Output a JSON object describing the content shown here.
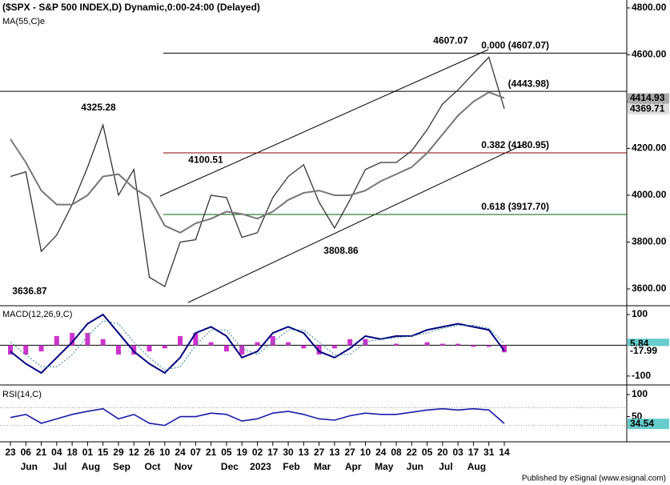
{
  "chart_data": [
    {
      "type": "price",
      "title": "($SPX - S&P 500 INDEX,D) Dynamic,0:00-24:00 (Delayed)",
      "subtitle": "MA(55,C)e",
      "categories": [
        "23",
        "06",
        "21",
        "04",
        "18",
        "01",
        "15",
        "29",
        "12",
        "26",
        "10",
        "24",
        "07",
        "21",
        "05",
        "19",
        "02",
        "17",
        "30",
        "13",
        "27",
        "13",
        "27",
        "10",
        "24",
        "08",
        "22",
        "05",
        "20",
        "03",
        "17",
        "31",
        "14"
      ],
      "months": [
        null,
        "Jun",
        null,
        "Jul",
        null,
        "Aug",
        null,
        "Sep",
        null,
        "Oct",
        null,
        "Nov",
        null,
        null,
        "Dec",
        null,
        "2023",
        null,
        "Feb",
        null,
        "Mar",
        null,
        "Apr",
        null,
        "May",
        null,
        "Jun",
        null,
        "Jul",
        null,
        "Aug",
        null,
        null
      ],
      "series": [
        {
          "color": "#333333",
          "values": [
            4080,
            4100,
            3760,
            3830,
            3960,
            4120,
            4300,
            4000,
            4110,
            3650,
            3610,
            3800,
            3810,
            4000,
            3990,
            3820,
            3840,
            3990,
            4080,
            4130,
            3970,
            3860,
            3980,
            4110,
            4140,
            4140,
            4190,
            4280,
            4390,
            4450,
            4520,
            4590,
            4369.71
          ]
        },
        {
          "color": "#777777",
          "values": [
            4240,
            4140,
            4020,
            3960,
            3960,
            4000,
            4080,
            4090,
            4030,
            3990,
            3870,
            3840,
            3880,
            3900,
            3930,
            3920,
            3900,
            3930,
            3980,
            4010,
            4020,
            4000,
            4000,
            4020,
            4060,
            4090,
            4120,
            4180,
            4260,
            4340,
            4400,
            4440,
            4414.93
          ]
        }
      ],
      "ylim": [
        3528,
        4834
      ],
      "yticks": [
        {
          "value": 3600,
          "label": "3600.00"
        },
        {
          "value": 3800,
          "label": "3800.00"
        },
        {
          "value": 4000,
          "label": "4000.00"
        },
        {
          "value": 4200,
          "label": "4200.00"
        },
        {
          "value": 4400,
          "label": "4400.00"
        },
        {
          "value": 4600,
          "label": "4600.00"
        },
        {
          "value": 4800,
          "label": "4800.00"
        }
      ],
      "levels": [
        {
          "label": "0.000 (4607.07)",
          "value": 4607.07,
          "color": "#000000"
        },
        {
          "label": "(4443.98)",
          "value": 4443.98,
          "color": "#000000"
        },
        {
          "label": "0.382 (4180.95)",
          "value": 4180.95,
          "color": "#8b0000"
        },
        {
          "label": "0.618 (3917.70)",
          "value": 3917.7,
          "color": "#006400"
        }
      ],
      "annotations": [
        {
          "label": "4607.07",
          "value": 4607.07
        },
        {
          "label": "4325.28",
          "value": 4325.28
        },
        {
          "label": "4100.51",
          "value": 4100.51
        },
        {
          "label": "3808.86",
          "value": 3808.86
        },
        {
          "label": "3636.87",
          "value": 3636.87
        }
      ]
    },
    {
      "type": "macd",
      "title": "MACD(12,26,9,C)",
      "series": [
        {
          "color": "#000080",
          "values": [
            -20,
            -60,
            -90,
            -40,
            10,
            70,
            100,
            40,
            -20,
            -60,
            -90,
            -40,
            40,
            60,
            30,
            -40,
            -20,
            40,
            60,
            40,
            -20,
            -40,
            -10,
            30,
            20,
            30,
            30,
            50,
            60,
            70,
            60,
            50,
            -17.99
          ]
        },
        {
          "color": "#2e8b8b",
          "values": [
            10,
            -30,
            -70,
            -70,
            -30,
            30,
            80,
            70,
            10,
            -40,
            -80,
            -70,
            0,
            50,
            50,
            -10,
            -30,
            10,
            50,
            50,
            10,
            -30,
            -30,
            10,
            20,
            25,
            30,
            40,
            55,
            65,
            65,
            55,
            5.84
          ]
        }
      ],
      "histogram": {
        "color": "#cc33cc",
        "values": [
          -30,
          -30,
          -20,
          30,
          40,
          40,
          20,
          -30,
          -30,
          -20,
          -10,
          30,
          40,
          10,
          -20,
          -30,
          10,
          30,
          10,
          -10,
          -30,
          -10,
          20,
          20,
          0,
          5,
          0,
          10,
          5,
          5,
          -5,
          -5,
          -23
        ]
      },
      "ylim": [
        -129,
        126
      ],
      "yticks": [
        -100,
        100
      ]
    },
    {
      "type": "rsi",
      "title": "RSI(14,C)",
      "series": [
        {
          "color": "#1a1aaa",
          "values": [
            48,
            55,
            35,
            45,
            55,
            62,
            68,
            45,
            55,
            35,
            30,
            50,
            50,
            58,
            55,
            40,
            45,
            58,
            62,
            55,
            45,
            42,
            52,
            58,
            55,
            55,
            60,
            65,
            68,
            65,
            68,
            65,
            34.54
          ]
        }
      ],
      "guides": [
        70,
        30
      ],
      "ylim": [
        -7,
        120
      ],
      "yticks": [
        50,
        100
      ]
    }
  ],
  "footer": "Published by eSignal (www.esignal.com)"
}
